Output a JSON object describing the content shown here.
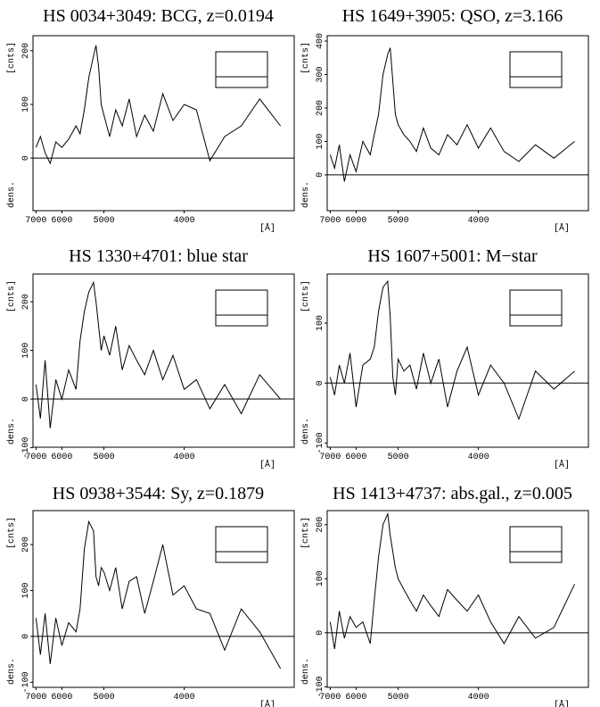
{
  "chart_data": [
    {
      "type": "line",
      "title": "HS 0034+3049: BCG, z=0.0194",
      "y_label_top": "[cnts]",
      "y_label_bottom": "dens.",
      "x_label": "[Å]",
      "x": [
        7000,
        6800,
        6600,
        6400,
        6200,
        6000,
        5800,
        5600,
        5500,
        5400,
        5300,
        5200,
        5150,
        5100,
        5050,
        5000,
        4900,
        4800,
        4700,
        4600,
        4500,
        4400,
        4300,
        4200,
        4100,
        4000,
        3900,
        3800,
        3700,
        3600,
        3500,
        3400
      ],
      "values": [
        20,
        40,
        10,
        -10,
        30,
        20,
        35,
        60,
        45,
        90,
        150,
        190,
        210,
        170,
        100,
        80,
        40,
        90,
        60,
        110,
        40,
        80,
        50,
        120,
        70,
        100,
        90,
        -5,
        40,
        60,
        110,
        60
      ],
      "color": "#000000",
      "xlim": [
        7150,
        3340
      ],
      "xticks": [
        7000,
        6000,
        5000,
        4000
      ],
      "ylim": [
        -98,
        228
      ],
      "yticks": [
        0,
        100,
        200
      ]
    },
    {
      "type": "line",
      "title": "HS 1649+3905: QSO, z=3.166",
      "y_label_top": "[cnts]",
      "y_label_bottom": "dens.",
      "x_label": "[Å]",
      "x": [
        7000,
        6800,
        6600,
        6400,
        6200,
        6000,
        5800,
        5600,
        5500,
        5400,
        5300,
        5200,
        5150,
        5100,
        5050,
        5000,
        4900,
        4800,
        4700,
        4600,
        4500,
        4400,
        4300,
        4200,
        4100,
        4000,
        3900,
        3800,
        3700,
        3600,
        3500,
        3400
      ],
      "values": [
        60,
        20,
        90,
        -20,
        60,
        10,
        100,
        60,
        120,
        180,
        300,
        360,
        380,
        280,
        180,
        150,
        120,
        100,
        70,
        140,
        80,
        60,
        120,
        90,
        150,
        80,
        140,
        70,
        40,
        90,
        50,
        100
      ],
      "color": "#000000",
      "xlim": [
        7150,
        3340
      ],
      "xticks": [
        7000,
        6000,
        5000,
        4000
      ],
      "ylim": [
        -107,
        416
      ],
      "yticks": [
        0,
        100,
        200,
        300,
        400
      ]
    },
    {
      "type": "line",
      "title": "HS 1330+4701: blue star",
      "y_label_top": "[cnts]",
      "y_label_bottom": "dens.",
      "x_label": "[Å]",
      "x": [
        7000,
        6800,
        6600,
        6400,
        6200,
        6000,
        5800,
        5600,
        5500,
        5400,
        5300,
        5200,
        5150,
        5100,
        5050,
        5000,
        4900,
        4800,
        4700,
        4600,
        4500,
        4400,
        4300,
        4200,
        4100,
        4000,
        3900,
        3800,
        3700,
        3600,
        3500,
        3400
      ],
      "values": [
        30,
        -40,
        80,
        -60,
        40,
        0,
        60,
        20,
        120,
        180,
        220,
        240,
        200,
        150,
        100,
        130,
        90,
        150,
        60,
        110,
        80,
        50,
        100,
        40,
        90,
        20,
        40,
        -20,
        30,
        -30,
        50,
        0
      ],
      "color": "#000000",
      "xlim": [
        7150,
        3340
      ],
      "xticks": [
        7000,
        6000,
        5000,
        4000
      ],
      "ylim": [
        -99,
        257
      ],
      "yticks": [
        -100,
        0,
        100,
        200
      ]
    },
    {
      "type": "line",
      "title": "HS 1607+5001: M−star",
      "y_label_top": "[cnts]",
      "y_label_bottom": "dens.",
      "x_label": "[Å]",
      "x": [
        7000,
        6800,
        6600,
        6400,
        6200,
        6000,
        5800,
        5600,
        5500,
        5400,
        5300,
        5200,
        5150,
        5100,
        5050,
        5000,
        4900,
        4800,
        4700,
        4600,
        4500,
        4400,
        4300,
        4200,
        4100,
        4000,
        3900,
        3800,
        3700,
        3600,
        3500,
        3400
      ],
      "values": [
        10,
        -20,
        30,
        0,
        50,
        -40,
        30,
        40,
        60,
        120,
        160,
        170,
        110,
        10,
        -20,
        40,
        20,
        30,
        -10,
        50,
        0,
        40,
        -40,
        20,
        60,
        -20,
        30,
        0,
        -60,
        20,
        -10,
        20
      ],
      "color": "#000000",
      "xlim": [
        7150,
        3340
      ],
      "xticks": [
        7000,
        6000,
        5000,
        4000
      ],
      "ylim": [
        -107,
        182
      ],
      "yticks": [
        -100,
        0,
        100
      ]
    },
    {
      "type": "line",
      "title": "HS 0938+3544: Sy, z=0.1879",
      "y_label_top": "[cnts]",
      "y_label_bottom": "dens.",
      "x_label": "[Å]",
      "x": [
        7000,
        6800,
        6600,
        6400,
        6200,
        6000,
        5800,
        5600,
        5500,
        5400,
        5300,
        5200,
        5150,
        5100,
        5050,
        5000,
        4900,
        4800,
        4700,
        4600,
        4500,
        4400,
        4300,
        4200,
        4100,
        4000,
        3900,
        3800,
        3700,
        3600,
        3500,
        3400
      ],
      "values": [
        40,
        -40,
        50,
        -60,
        40,
        -20,
        30,
        10,
        60,
        190,
        250,
        230,
        130,
        110,
        150,
        140,
        100,
        150,
        60,
        120,
        130,
        50,
        120,
        200,
        90,
        110,
        60,
        50,
        -30,
        60,
        10,
        -70
      ],
      "color": "#000000",
      "xlim": [
        7150,
        3340
      ],
      "xticks": [
        7000,
        6000,
        5000,
        4000
      ],
      "ylim": [
        -111,
        274
      ],
      "yticks": [
        -100,
        0,
        100,
        200
      ]
    },
    {
      "type": "line",
      "title": "HS 1413+4737: abs.gal., z=0.005",
      "y_label_top": "[cnts]",
      "y_label_bottom": "dens.",
      "x_label": "[Å]",
      "x": [
        7000,
        6800,
        6600,
        6400,
        6200,
        6000,
        5800,
        5600,
        5500,
        5400,
        5300,
        5200,
        5150,
        5100,
        5050,
        5000,
        4900,
        4800,
        4700,
        4600,
        4500,
        4400,
        4300,
        4200,
        4100,
        4000,
        3900,
        3800,
        3700,
        3600,
        3500,
        3400
      ],
      "values": [
        20,
        -30,
        40,
        -10,
        30,
        10,
        20,
        -20,
        60,
        140,
        200,
        220,
        180,
        150,
        120,
        100,
        80,
        60,
        40,
        70,
        50,
        30,
        80,
        60,
        40,
        70,
        20,
        -20,
        30,
        -10,
        10,
        90
      ],
      "color": "#000000",
      "xlim": [
        7150,
        3340
      ],
      "xticks": [
        7000,
        6000,
        5000,
        4000
      ],
      "ylim": [
        -101,
        226
      ],
      "yticks": [
        -100,
        0,
        100,
        200
      ]
    }
  ]
}
